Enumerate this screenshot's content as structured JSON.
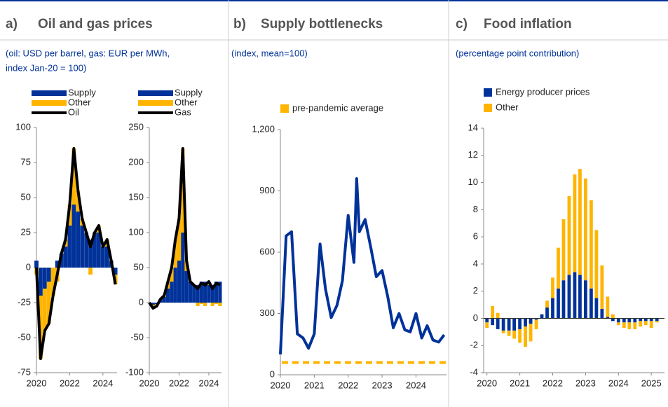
{
  "panels": [
    {
      "label": "a)",
      "title": "Oil and gas prices",
      "subtitle": [
        "(oil: USD per barrel, gas: EUR per MWh,",
        "index Jan-20 = 100)"
      ]
    },
    {
      "label": "b)",
      "title": "Supply bottlenecks",
      "subtitle": [
        "(index, mean=100)"
      ]
    },
    {
      "label": "c)",
      "title": "Food inflation",
      "subtitle": [
        "(percentage point contribution)"
      ]
    }
  ],
  "chart_data": [
    {
      "type": "combo",
      "x": [
        2020,
        2020.25,
        2020.5,
        2020.75,
        2021,
        2021.25,
        2021.5,
        2021.75,
        2022,
        2022.25,
        2022.5,
        2022.75,
        2023,
        2023.25,
        2023.5,
        2023.75,
        2024,
        2024.25,
        2024.5,
        2024.75
      ],
      "xlim": [
        2020,
        2024.85
      ],
      "xticks": [
        2020,
        2022,
        2024
      ],
      "ylim": [
        -75,
        100
      ],
      "yticks": [
        -75,
        -50,
        -25,
        0,
        25,
        50,
        75,
        100
      ],
      "series": [
        {
          "name": "Supply",
          "color": "#003299",
          "mark": "bar",
          "values": [
            5,
            -20,
            -15,
            -10,
            0,
            5,
            10,
            15,
            30,
            45,
            40,
            30,
            25,
            20,
            25,
            25,
            15,
            15,
            5,
            -5
          ]
        },
        {
          "name": "Other",
          "color": "#ffb400",
          "mark": "bar",
          "values": [
            -5,
            -45,
            -30,
            -30,
            -20,
            -10,
            0,
            5,
            15,
            40,
            15,
            5,
            0,
            -5,
            0,
            5,
            0,
            5,
            0,
            -7
          ]
        },
        {
          "name": "Oil",
          "color": "#000000",
          "mark": "line",
          "values": [
            0,
            -65,
            -45,
            -40,
            -20,
            -5,
            10,
            20,
            45,
            85,
            55,
            35,
            25,
            15,
            25,
            30,
            15,
            20,
            5,
            -12
          ]
        }
      ]
    },
    {
      "type": "combo",
      "x": [
        2020,
        2020.25,
        2020.5,
        2020.75,
        2021,
        2021.25,
        2021.5,
        2021.75,
        2022,
        2022.25,
        2022.5,
        2022.75,
        2023,
        2023.25,
        2023.5,
        2023.75,
        2024,
        2024.25,
        2024.5,
        2024.75
      ],
      "xlim": [
        2020,
        2024.85
      ],
      "xticks": [
        2020,
        2022,
        2024
      ],
      "ylim": [
        -100,
        250
      ],
      "yticks": [
        -100,
        -50,
        0,
        50,
        100,
        150,
        200,
        250
      ],
      "series": [
        {
          "name": "Supply",
          "color": "#003299",
          "mark": "bar",
          "values": [
            0,
            -3,
            -2,
            5,
            8,
            20,
            30,
            50,
            60,
            100,
            45,
            30,
            25,
            25,
            30,
            30,
            25,
            25,
            30,
            30
          ]
        },
        {
          "name": "Other",
          "color": "#ffb400",
          "mark": "bar",
          "values": [
            0,
            -5,
            -3,
            0,
            2,
            10,
            20,
            40,
            60,
            120,
            15,
            0,
            0,
            -5,
            -2,
            -5,
            5,
            -5,
            -2,
            -5
          ]
        },
        {
          "name": "Gas",
          "color": "#000000",
          "mark": "line",
          "values": [
            0,
            -8,
            -5,
            5,
            10,
            30,
            50,
            90,
            120,
            220,
            60,
            30,
            25,
            20,
            28,
            25,
            30,
            20,
            28,
            25
          ]
        }
      ]
    },
    {
      "type": "line",
      "x": [
        2020,
        2020.17,
        2020.33,
        2020.5,
        2020.67,
        2020.83,
        2021,
        2021.17,
        2021.33,
        2021.5,
        2021.67,
        2021.83,
        2022,
        2022.17,
        2022.25,
        2022.33,
        2022.5,
        2022.67,
        2022.83,
        2023,
        2023.17,
        2023.33,
        2023.5,
        2023.67,
        2023.83,
        2024,
        2024.17,
        2024.33,
        2024.5,
        2024.67,
        2024.83
      ],
      "xlim": [
        2020,
        2024.9
      ],
      "xticks": [
        2020,
        2021,
        2022,
        2023,
        2024
      ],
      "ylim": [
        0,
        1200
      ],
      "yticks": [
        0,
        300,
        600,
        900,
        {
          "value": 1200,
          "label": "1,200"
        }
      ],
      "series": [
        {
          "color": "#003299",
          "mark": "line",
          "values": [
            100,
            680,
            700,
            200,
            180,
            130,
            200,
            640,
            420,
            280,
            340,
            460,
            780,
            550,
            960,
            700,
            760,
            620,
            480,
            510,
            380,
            230,
            300,
            220,
            210,
            300,
            180,
            240,
            170,
            160,
            195
          ]
        }
      ],
      "reference": {
        "name": "pre-pandemic average",
        "color": "#ffb400",
        "value": 60
      }
    },
    {
      "type": "bar",
      "x": [
        2020,
        2020.17,
        2020.33,
        2020.5,
        2020.67,
        2020.83,
        2021,
        2021.17,
        2021.33,
        2021.5,
        2021.67,
        2021.83,
        2022,
        2022.17,
        2022.33,
        2022.5,
        2022.67,
        2022.83,
        2023,
        2023.17,
        2023.33,
        2023.5,
        2023.67,
        2023.83,
        2024,
        2024.17,
        2024.33,
        2024.5,
        2024.67,
        2024.83,
        2025,
        2025.17
      ],
      "xlim": [
        2019.9,
        2025.4
      ],
      "xticks": [
        2020,
        2021,
        2022,
        2023,
        2024,
        2025
      ],
      "ylim": [
        -4,
        14
      ],
      "yticks": [
        -4,
        -2,
        0,
        2,
        4,
        6,
        8,
        10,
        12,
        14
      ],
      "series": [
        {
          "name": "Energy producer prices",
          "color": "#003299",
          "mark": "bar",
          "values": [
            -0.3,
            -0.5,
            -0.8,
            -0.9,
            -0.9,
            -0.9,
            -0.8,
            -0.6,
            -0.4,
            -0.1,
            0.3,
            0.8,
            1.5,
            2.2,
            2.8,
            3.2,
            3.4,
            3.2,
            2.8,
            2.2,
            1.5,
            0.7,
            0.1,
            -0.2,
            -0.3,
            -0.3,
            -0.3,
            -0.3,
            -0.2,
            -0.2,
            -0.2,
            -0.2
          ]
        },
        {
          "name": "Other",
          "color": "#ffb400",
          "mark": "bar",
          "values": [
            -0.4,
            0.9,
            0.4,
            -0.2,
            -0.4,
            -0.6,
            -1.0,
            -1.5,
            -1.3,
            -0.7,
            0.0,
            0.5,
            1.5,
            3.0,
            4.5,
            5.8,
            7.2,
            7.8,
            7.5,
            6.5,
            5.0,
            3.2,
            1.5,
            0.3,
            -0.2,
            -0.4,
            -0.5,
            -0.5,
            -0.4,
            -0.3,
            -0.5,
            -0.1
          ]
        }
      ]
    }
  ]
}
